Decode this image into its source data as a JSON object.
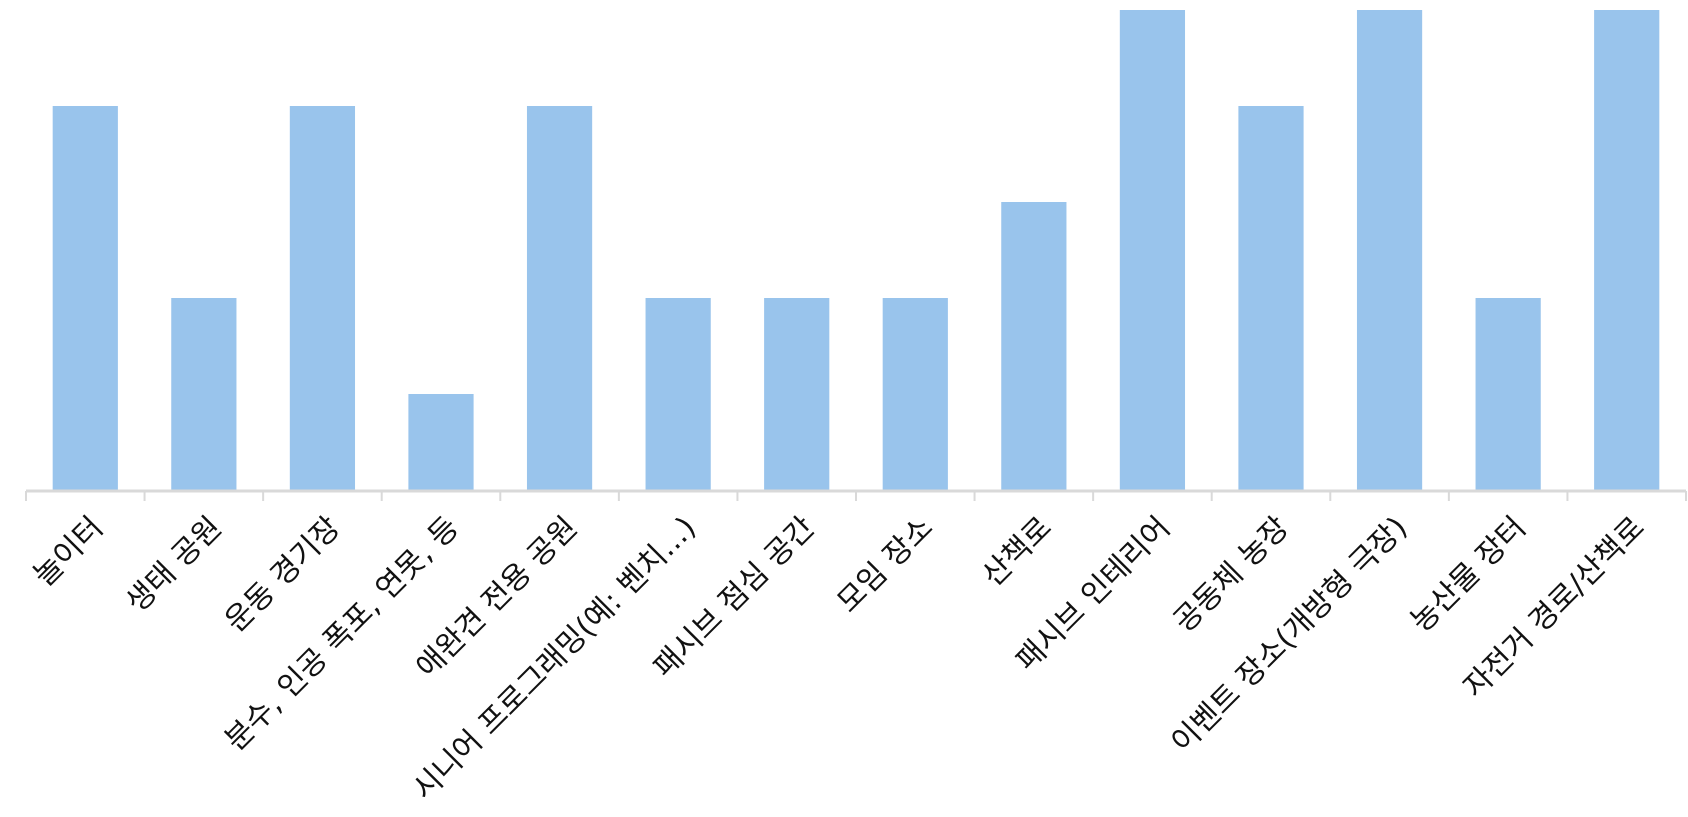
{
  "chart_data": {
    "type": "bar",
    "categories": [
      "놀이터",
      "생태 공원",
      "운동 경기장",
      "분수, 인공 폭포, 연못, 등",
      "애완견 전용 공원",
      "시니어 프로그래밍(예: 벤치...)",
      "패시브 점심 공간",
      "모임 장소",
      "산책로",
      "패시브 인테리어",
      "공동체 농장",
      "이벤트 장소(개방형 극장)",
      "농산물 장터",
      "자전거 경로/산책로"
    ],
    "values": [
      4,
      2,
      4,
      1,
      4,
      2,
      2,
      2,
      3,
      5,
      4,
      5,
      2,
      5
    ],
    "ylim": [
      0,
      5
    ],
    "grid": false,
    "legend": "none",
    "title": "",
    "xlabel": "",
    "ylabel": "",
    "colors": {
      "bar": "#99c4ec",
      "axis": "#d9d9d9"
    }
  }
}
